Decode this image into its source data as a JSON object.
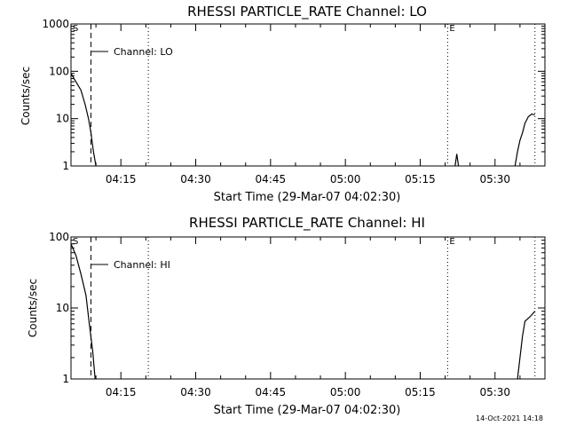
{
  "timestamp": "14-Oct-2021 14:18",
  "chart_data": [
    {
      "type": "line",
      "title": "RHESSI PARTICLE_RATE Channel: LO",
      "xlabel": "Start Time (29-Mar-07 04:02:30)",
      "ylabel": "Counts/sec",
      "y_scale": "log",
      "ylim": [
        1,
        1000
      ],
      "y_ticks": [
        {
          "value": 1,
          "label": "1"
        },
        {
          "value": 10,
          "label": "10"
        },
        {
          "value": 100,
          "label": "100"
        },
        {
          "value": 1000,
          "label": "1000"
        }
      ],
      "xlim": [
        "04:05:00",
        "05:40:00"
      ],
      "x_ticks": [
        "04:15",
        "04:30",
        "04:45",
        "05:00",
        "05:15",
        "05:30"
      ],
      "legend": {
        "label": "Channel: LO",
        "placement": "top-left"
      },
      "markers": [
        {
          "label": "S",
          "time": "04:05:00",
          "style": "solid"
        },
        {
          "label": "",
          "time": "04:09:00",
          "style": "dashed"
        },
        {
          "label": "",
          "time": "04:20:30",
          "style": "dotted"
        },
        {
          "label": "E",
          "time": "05:20:30",
          "style": "dotted"
        },
        {
          "label": "",
          "time": "05:38:00",
          "style": "dotted"
        }
      ],
      "series": [
        {
          "values": [
            {
              "x": "04:05:00",
              "y": 90
            },
            {
              "x": "04:06:00",
              "y": 60
            },
            {
              "x": "04:07:00",
              "y": 40
            },
            {
              "x": "04:07:50",
              "y": 20
            },
            {
              "x": "04:08:30",
              "y": 10
            },
            {
              "x": "04:09:00",
              "y": 5
            },
            {
              "x": "04:09:30",
              "y": 2
            },
            {
              "x": "04:10:00",
              "y": 1
            }
          ]
        },
        {
          "values": [
            {
              "x": "05:22:00",
              "y": 1
            },
            {
              "x": "05:22:20",
              "y": 1.8
            },
            {
              "x": "05:22:40",
              "y": 1
            }
          ]
        },
        {
          "values": [
            {
              "x": "05:34:00",
              "y": 1
            },
            {
              "x": "05:34:30",
              "y": 2
            },
            {
              "x": "05:35:00",
              "y": 3.5
            },
            {
              "x": "05:35:30",
              "y": 5
            },
            {
              "x": "05:36:00",
              "y": 8
            },
            {
              "x": "05:36:40",
              "y": 11
            },
            {
              "x": "05:37:20",
              "y": 12.5
            },
            {
              "x": "05:38:00",
              "y": 12
            }
          ]
        }
      ]
    },
    {
      "type": "line",
      "title": "RHESSI PARTICLE_RATE Channel: HI",
      "xlabel": "Start Time (29-Mar-07 04:02:30)",
      "ylabel": "Counts/sec",
      "y_scale": "log",
      "ylim": [
        1,
        100
      ],
      "y_ticks": [
        {
          "value": 1,
          "label": "1"
        },
        {
          "value": 10,
          "label": "10"
        },
        {
          "value": 100,
          "label": "100"
        }
      ],
      "xlim": [
        "04:05:00",
        "05:40:00"
      ],
      "x_ticks": [
        "04:15",
        "04:30",
        "04:45",
        "05:00",
        "05:15",
        "05:30"
      ],
      "legend": {
        "label": "Channel: HI",
        "placement": "top-left"
      },
      "markers": [
        {
          "label": "S",
          "time": "04:05:00",
          "style": "solid"
        },
        {
          "label": "",
          "time": "04:09:00",
          "style": "dashed"
        },
        {
          "label": "",
          "time": "04:20:30",
          "style": "dotted"
        },
        {
          "label": "E",
          "time": "05:20:30",
          "style": "dotted"
        },
        {
          "label": "",
          "time": "05:38:00",
          "style": "dotted"
        }
      ],
      "series": [
        {
          "values": [
            {
              "x": "04:05:00",
              "y": 80
            },
            {
              "x": "04:06:00",
              "y": 55
            },
            {
              "x": "04:07:00",
              "y": 30
            },
            {
              "x": "04:08:00",
              "y": 15
            },
            {
              "x": "04:08:40",
              "y": 6
            },
            {
              "x": "04:09:20",
              "y": 2.5
            },
            {
              "x": "04:09:50",
              "y": 1
            }
          ]
        },
        {
          "values": [
            {
              "x": "05:34:30",
              "y": 1
            },
            {
              "x": "05:35:00",
              "y": 2
            },
            {
              "x": "05:35:30",
              "y": 4
            },
            {
              "x": "05:36:00",
              "y": 6.5
            },
            {
              "x": "05:37:00",
              "y": 7.5
            },
            {
              "x": "05:38:00",
              "y": 9
            }
          ]
        }
      ]
    }
  ]
}
